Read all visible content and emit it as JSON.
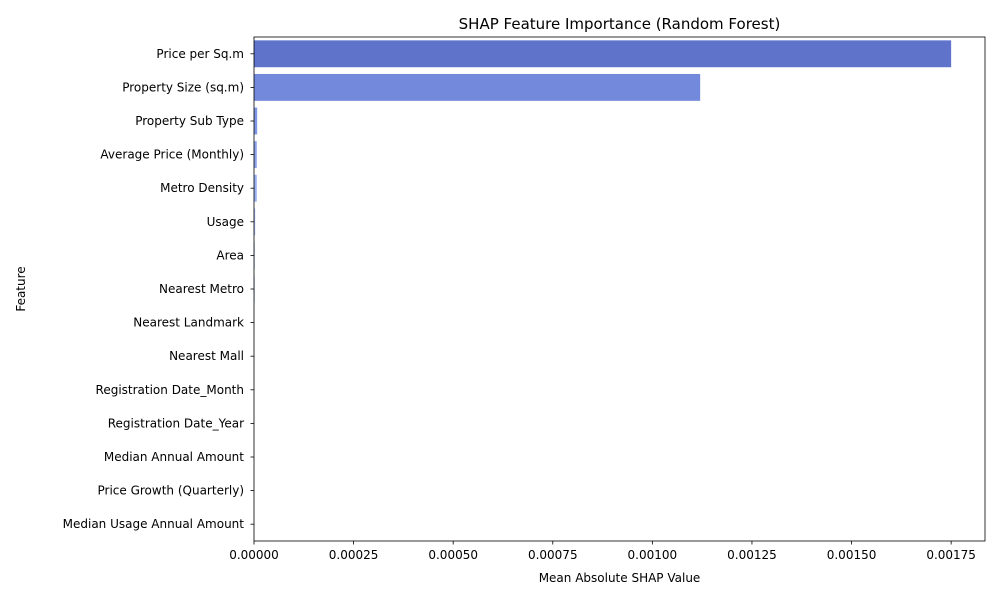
{
  "chart_data": {
    "type": "bar",
    "orientation": "horizontal",
    "title": "SHAP Feature Importance (Random Forest)",
    "xlabel": "Mean Absolute SHAP Value",
    "ylabel": "Feature",
    "xlim": [
      0,
      0.001835
    ],
    "xticks": [
      0,
      0.00025,
      0.0005,
      0.00075,
      0.001,
      0.00125,
      0.0015,
      0.00175
    ],
    "xtick_labels": [
      "0.00000",
      "0.00025",
      "0.00050",
      "0.00075",
      "0.00100",
      "0.00125",
      "0.00150",
      "0.00175"
    ],
    "grid": false,
    "categories": [
      "Price per Sq.m",
      "Property Size (sq.m)",
      "Property Sub Type",
      "Average Price (Monthly)",
      "Metro Density",
      "Usage",
      "Area",
      "Nearest Metro",
      "Nearest Landmark",
      "Nearest Mall",
      "Registration Date_Month",
      "Registration Date_Year",
      "Median Annual Amount",
      "Price Growth (Quarterly)",
      "Median Usage Annual Amount"
    ],
    "values": [
      0.00175,
      0.00112,
      8e-06,
      7e-06,
      7e-06,
      3e-06,
      2e-06,
      2e-06,
      1e-06,
      1e-06,
      5e-07,
      5e-07,
      3e-07,
      2e-07,
      1e-07
    ],
    "colors": [
      "#5f73cb",
      "#7289dc",
      "#7f97e6",
      "#8da4ee",
      "#9bb2f3",
      "#a8bff6",
      "#b5cbf8",
      "#c2d5f7",
      "#cedff4",
      "#d8e4ef",
      "#dfe5ea",
      "#e6e0dc",
      "#e9d6cc",
      "#e8c8b8",
      "#e3b7a4"
    ]
  }
}
